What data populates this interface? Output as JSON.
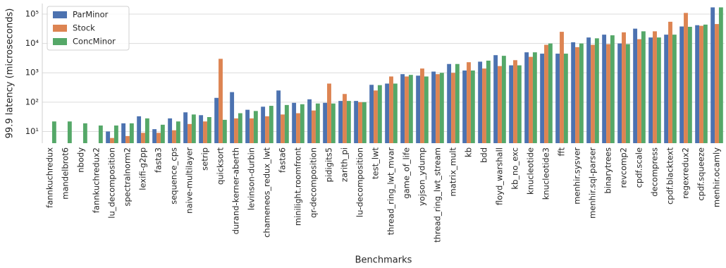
{
  "chart_data": {
    "type": "bar",
    "xlabel": "Benchmarks",
    "ylabel": "99.9 latency (microseconds)",
    "log_y": true,
    "grid": true,
    "legend": "upper left",
    "categories": [
      "fannkuchredux",
      "mandelbrot6",
      "nbody",
      "fannkuchredux2",
      "lu_decomposition",
      "spectralnorm2",
      "lexifi-g2pp",
      "fasta3",
      "sequence_cps",
      "naive-multilayer",
      "setrip",
      "quicksort",
      "durand-kerner-aberth",
      "levinson-durbin",
      "chameneos_redux_lwt",
      "fasta6",
      "minilight.roomfront",
      "qr-decomposition",
      "pidigits5",
      "zarith_pi",
      "lu-decomposition",
      "test_lwt",
      "thread_ring_lwt_mvar",
      "game_of_life",
      "yojson_ydump",
      "thread_ring_lwt_stream",
      "matrix_mult",
      "kb",
      "bdd",
      "floyd_warshall",
      "kb_no_exc",
      "knucleotide",
      "knucleotide3",
      "fft",
      "menhir.sysver",
      "menhir.sql-parser",
      "binarytrees",
      "revcomp2",
      "cpdf.scale",
      "decompress",
      "cpdf.blacktext",
      "regexredux2",
      "cpdf.squeeze",
      "menhir.ocamly"
    ],
    "series": [
      {
        "name": "ParMinor",
        "color": "#4c72b0",
        "values": [
          null,
          null,
          null,
          null,
          10,
          19,
          33,
          12,
          28,
          45,
          36,
          140,
          220,
          55,
          70,
          250,
          95,
          125,
          95,
          110,
          110,
          390,
          430,
          900,
          800,
          1100,
          2000,
          1200,
          2400,
          4000,
          1800,
          5000,
          4500,
          4500,
          11000,
          16000,
          20000,
          10000,
          32000,
          16000,
          20000,
          38000,
          42000,
          170000
        ]
      },
      {
        "name": "Stock",
        "color": "#dd8452",
        "values": [
          null,
          null,
          null,
          null,
          6,
          7,
          9,
          9,
          11,
          18,
          22,
          3000,
          28,
          28,
          33,
          38,
          42,
          52,
          430,
          190,
          100,
          250,
          750,
          750,
          1400,
          900,
          1000,
          2300,
          1400,
          1700,
          2700,
          3500,
          9000,
          25000,
          7500,
          9000,
          9500,
          24000,
          14000,
          26000,
          55000,
          110000,
          40000,
          46000
        ]
      },
      {
        "name": "ConcMinor",
        "color": "#55a868",
        "values": [
          22,
          22,
          19,
          16,
          16,
          19,
          28,
          17,
          22,
          38,
          31,
          25,
          42,
          50,
          75,
          80,
          85,
          90,
          90,
          110,
          100,
          380,
          430,
          850,
          750,
          1000,
          2000,
          1200,
          2600,
          3800,
          1800,
          5000,
          10000,
          4500,
          10000,
          15000,
          19000,
          9500,
          26000,
          16000,
          20000,
          37000,
          44000,
          170000
        ]
      }
    ],
    "ylim": [
      4,
      230000
    ],
    "yticks": [
      {
        "value": 10,
        "label": "10¹"
      },
      {
        "value": 100,
        "label": "10²"
      },
      {
        "value": 1000,
        "label": "10³"
      },
      {
        "value": 10000,
        "label": "10⁴"
      },
      {
        "value": 100000,
        "label": "10⁵"
      }
    ]
  }
}
